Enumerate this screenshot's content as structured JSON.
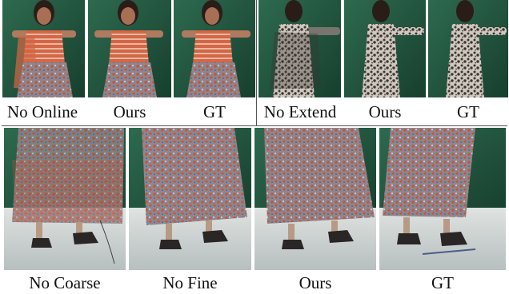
{
  "figure": {
    "top_row": {
      "left_group": {
        "captions": [
          "No Online",
          "Ours",
          "GT"
        ]
      },
      "right_group": {
        "captions": [
          "No Extend",
          "Ours",
          "GT"
        ]
      }
    },
    "bottom_row": {
      "captions": [
        "No Coarse",
        "No Fine",
        "Ours",
        "GT"
      ]
    }
  },
  "colors": {
    "green_screen": "#1f5a3f",
    "red_top": "#c7583d",
    "floral_skirt": "#8a7d80",
    "leopard_dress": "#6e6964",
    "floor": "#c9cfcf"
  }
}
